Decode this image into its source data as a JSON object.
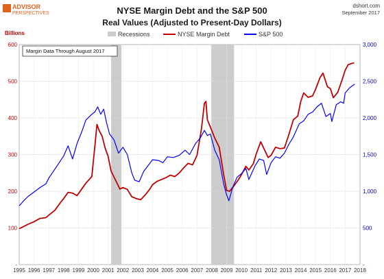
{
  "logo": {
    "line1": "ADVISOR",
    "line2": "PERSPECTIVES",
    "accent_color": "#e0631d"
  },
  "source": {
    "site": "dshort.com",
    "date": "September 2017"
  },
  "chart_data": {
    "type": "line",
    "title": "NYSE Margin Debt and the S&P 500",
    "subtitle": "Real Values (Adjusted to Present-Day Dollars)",
    "left_axis": {
      "label": "Billions",
      "min": 0,
      "max": 600,
      "step": 100,
      "color": "#c00000",
      "ticks": [
        "-",
        "100",
        "200",
        "300",
        "400",
        "500",
        "600"
      ]
    },
    "right_axis": {
      "min": 0,
      "max": 3000,
      "step": 500,
      "color": "#0000cc",
      "ticks": [
        "-",
        "500",
        "1,000",
        "1,500",
        "2,000",
        "2,500",
        "3,000"
      ]
    },
    "x_axis": {
      "min": 1995,
      "max": 2018,
      "ticks": [
        "1995",
        "1996",
        "1997",
        "1998",
        "1999",
        "2000",
        "2001",
        "2002",
        "2003",
        "2004",
        "2005",
        "2006",
        "2007",
        "2008",
        "2009",
        "2010",
        "2011",
        "2012",
        "2013",
        "2014",
        "2015",
        "2016",
        "2017",
        "2018"
      ]
    },
    "grid": true,
    "annotation": "Margin Data Through August 2017",
    "legend": {
      "position": "top",
      "recessions_label": "Recessions",
      "items": [
        {
          "name": "NYSE Margin Debt",
          "color": "#c00000"
        },
        {
          "name": "S&P 500",
          "color": "#0000ff"
        }
      ]
    },
    "recessions": [
      [
        2001.2,
        2001.9
      ],
      [
        2007.95,
        2009.5
      ]
    ],
    "series": [
      {
        "name": "NYSE Margin Debt",
        "axis": "left",
        "color": "#c00000",
        "points": [
          [
            1995.0,
            98
          ],
          [
            1995.3,
            104
          ],
          [
            1995.6,
            110
          ],
          [
            1996.0,
            117
          ],
          [
            1996.4,
            126
          ],
          [
            1996.8,
            128
          ],
          [
            1997.0,
            135
          ],
          [
            1997.4,
            148
          ],
          [
            1997.8,
            170
          ],
          [
            1998.0,
            180
          ],
          [
            1998.3,
            197
          ],
          [
            1998.6,
            195
          ],
          [
            1998.9,
            188
          ],
          [
            1999.2,
            205
          ],
          [
            1999.5,
            222
          ],
          [
            1999.9,
            240
          ],
          [
            2000.1,
            320
          ],
          [
            2000.25,
            382
          ],
          [
            2000.4,
            365
          ],
          [
            2000.6,
            350
          ],
          [
            2000.8,
            318
          ],
          [
            2001.0,
            295
          ],
          [
            2001.2,
            255
          ],
          [
            2001.5,
            230
          ],
          [
            2001.8,
            206
          ],
          [
            2002.0,
            210
          ],
          [
            2002.3,
            205
          ],
          [
            2002.6,
            185
          ],
          [
            2002.9,
            180
          ],
          [
            2003.2,
            177
          ],
          [
            2003.5,
            190
          ],
          [
            2003.8,
            205
          ],
          [
            2004.0,
            218
          ],
          [
            2004.3,
            227
          ],
          [
            2004.6,
            232
          ],
          [
            2004.9,
            237
          ],
          [
            2005.2,
            244
          ],
          [
            2005.5,
            240
          ],
          [
            2005.8,
            250
          ],
          [
            2006.1,
            264
          ],
          [
            2006.4,
            276
          ],
          [
            2006.7,
            272
          ],
          [
            2007.0,
            298
          ],
          [
            2007.3,
            370
          ],
          [
            2007.5,
            440
          ],
          [
            2007.6,
            445
          ],
          [
            2007.7,
            395
          ],
          [
            2007.9,
            375
          ],
          [
            2008.2,
            345
          ],
          [
            2008.5,
            320
          ],
          [
            2008.8,
            245
          ],
          [
            2009.0,
            202
          ],
          [
            2009.2,
            200
          ],
          [
            2009.5,
            215
          ],
          [
            2009.8,
            232
          ],
          [
            2010.0,
            245
          ],
          [
            2010.3,
            268
          ],
          [
            2010.5,
            258
          ],
          [
            2010.8,
            275
          ],
          [
            2011.0,
            302
          ],
          [
            2011.3,
            335
          ],
          [
            2011.5,
            318
          ],
          [
            2011.8,
            292
          ],
          [
            2012.0,
            298
          ],
          [
            2012.3,
            320
          ],
          [
            2012.6,
            316
          ],
          [
            2012.9,
            318
          ],
          [
            2013.2,
            355
          ],
          [
            2013.5,
            395
          ],
          [
            2013.8,
            405
          ],
          [
            2014.0,
            445
          ],
          [
            2014.2,
            468
          ],
          [
            2014.5,
            456
          ],
          [
            2014.8,
            460
          ],
          [
            2015.0,
            478
          ],
          [
            2015.3,
            510
          ],
          [
            2015.5,
            522
          ],
          [
            2015.8,
            485
          ],
          [
            2016.0,
            480
          ],
          [
            2016.2,
            455
          ],
          [
            2016.5,
            470
          ],
          [
            2016.8,
            505
          ],
          [
            2017.0,
            530
          ],
          [
            2017.2,
            545
          ],
          [
            2017.4,
            548
          ],
          [
            2017.6,
            550
          ]
        ]
      },
      {
        "name": "S&P 500",
        "axis": "right",
        "color": "#0000ff",
        "points": [
          [
            1995.0,
            800
          ],
          [
            1995.3,
            870
          ],
          [
            1995.6,
            930
          ],
          [
            1996.0,
            990
          ],
          [
            1996.4,
            1050
          ],
          [
            1996.8,
            1100
          ],
          [
            1997.0,
            1180
          ],
          [
            1997.4,
            1300
          ],
          [
            1997.8,
            1420
          ],
          [
            1998.0,
            1480
          ],
          [
            1998.3,
            1620
          ],
          [
            1998.6,
            1440
          ],
          [
            1998.9,
            1650
          ],
          [
            1999.2,
            1800
          ],
          [
            1999.5,
            1970
          ],
          [
            1999.9,
            2050
          ],
          [
            2000.1,
            2080
          ],
          [
            2000.3,
            2150
          ],
          [
            2000.5,
            2050
          ],
          [
            2000.7,
            2120
          ],
          [
            2000.9,
            1930
          ],
          [
            2001.1,
            1780
          ],
          [
            2001.4,
            1700
          ],
          [
            2001.7,
            1520
          ],
          [
            2002.0,
            1600
          ],
          [
            2002.3,
            1500
          ],
          [
            2002.6,
            1250
          ],
          [
            2002.8,
            1150
          ],
          [
            2003.1,
            1130
          ],
          [
            2003.4,
            1270
          ],
          [
            2003.7,
            1350
          ],
          [
            2004.0,
            1430
          ],
          [
            2004.4,
            1420
          ],
          [
            2004.7,
            1390
          ],
          [
            2005.0,
            1470
          ],
          [
            2005.4,
            1460
          ],
          [
            2005.8,
            1490
          ],
          [
            2006.2,
            1560
          ],
          [
            2006.5,
            1500
          ],
          [
            2006.9,
            1650
          ],
          [
            2007.2,
            1720
          ],
          [
            2007.5,
            1830
          ],
          [
            2007.7,
            1760
          ],
          [
            2007.9,
            1780
          ],
          [
            2008.2,
            1560
          ],
          [
            2008.5,
            1430
          ],
          [
            2008.8,
            1100
          ],
          [
            2009.0,
            950
          ],
          [
            2009.15,
            870
          ],
          [
            2009.4,
            1050
          ],
          [
            2009.7,
            1190
          ],
          [
            2010.0,
            1240
          ],
          [
            2010.3,
            1310
          ],
          [
            2010.5,
            1160
          ],
          [
            2010.9,
            1340
          ],
          [
            2011.2,
            1440
          ],
          [
            2011.5,
            1420
          ],
          [
            2011.7,
            1230
          ],
          [
            2012.0,
            1390
          ],
          [
            2012.3,
            1470
          ],
          [
            2012.6,
            1450
          ],
          [
            2012.9,
            1520
          ],
          [
            2013.2,
            1640
          ],
          [
            2013.5,
            1740
          ],
          [
            2013.9,
            1920
          ],
          [
            2014.2,
            1960
          ],
          [
            2014.5,
            2050
          ],
          [
            2014.8,
            2080
          ],
          [
            2015.1,
            2150
          ],
          [
            2015.4,
            2200
          ],
          [
            2015.7,
            2020
          ],
          [
            2016.0,
            2060
          ],
          [
            2016.1,
            1950
          ],
          [
            2016.4,
            2180
          ],
          [
            2016.7,
            2220
          ],
          [
            2016.9,
            2200
          ],
          [
            2017.0,
            2340
          ],
          [
            2017.3,
            2410
          ],
          [
            2017.5,
            2440
          ],
          [
            2017.65,
            2460
          ]
        ]
      }
    ]
  }
}
